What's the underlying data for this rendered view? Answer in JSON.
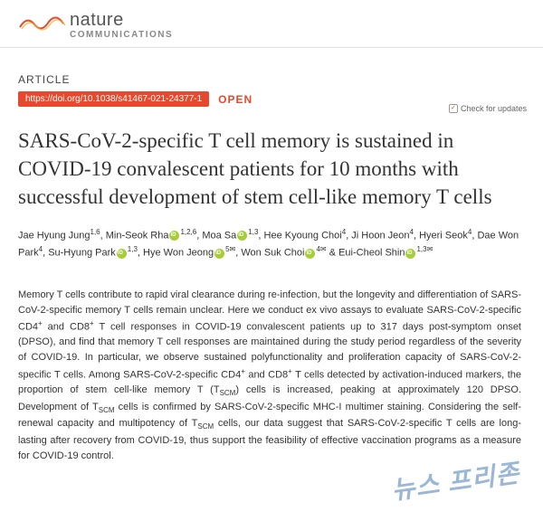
{
  "journal": {
    "name": "nature",
    "subtitle": "COMMUNICATIONS",
    "logo_colors": [
      "#e6492d",
      "#f4a623",
      "#c0392b"
    ]
  },
  "article": {
    "label": "ARTICLE",
    "doi": "https://doi.org/10.1038/s41467-021-24377-1",
    "open_access": "OPEN",
    "check_updates": "Check for updates"
  },
  "title": "SARS-CoV-2-specific T cell memory is sustained in COVID-19 convalescent patients for 10 months with successful development of stem cell-like memory T cells",
  "authors_html": "Jae Hyung Jung{sup}1,6{/sup}, Min-Seok Rha{orcid}{sup}1,2,6{/sup}, Moa Sa{orcid}{sup}1,3{/sup}, Hee Kyoung Choi{sup}4{/sup}, Ji Hoon Jeon{sup}4{/sup}, Hyeri Seok{sup}4{/sup}, Dae Won Park{sup}4{/sup}, Su-Hyung Park{orcid}{sup}1,3{/sup}, Hye Won Jeong{orcid}{sup}5✉{/sup}, Won Suk Choi{orcid}{sup}4✉{/sup} & Eui-Cheol Shin{orcid}{sup}1,3✉{/sup}",
  "abstract": "Memory T cells contribute to rapid viral clearance during re-infection, but the longevity and differentiation of SARS-CoV-2-specific memory T cells remain unclear. Here we conduct ex vivo assays to evaluate SARS-CoV-2-specific CD4+ and CD8+ T cell responses in COVID-19 convalescent patients up to 317 days post-symptom onset (DPSO), and find that memory T cell responses are maintained during the study period regardless of the severity of COVID-19. In particular, we observe sustained polyfunctionality and proliferation capacity of SARS-CoV-2-specific T cells. Among SARS-CoV-2-specific CD4+ and CD8+ T cells detected by activation-induced markers, the proportion of stem cell-like memory T (TSCM) cells is increased, peaking at approximately 120 DPSO. Development of TSCM cells is confirmed by SARS-CoV-2-specific MHC-I multimer staining. Considering the self-renewal capacity and multipotency of TSCM cells, our data suggest that SARS-CoV-2-specific T cells are long-lasting after recovery from COVID-19, thus support the feasibility of effective vaccination programs as a measure for COVID-19 control.",
  "watermark": "뉴스 프리존",
  "colors": {
    "accent": "#e6492d",
    "text": "#333333",
    "muted": "#888888",
    "orcid": "#a6ce39",
    "watermark": "#4a7db5"
  }
}
